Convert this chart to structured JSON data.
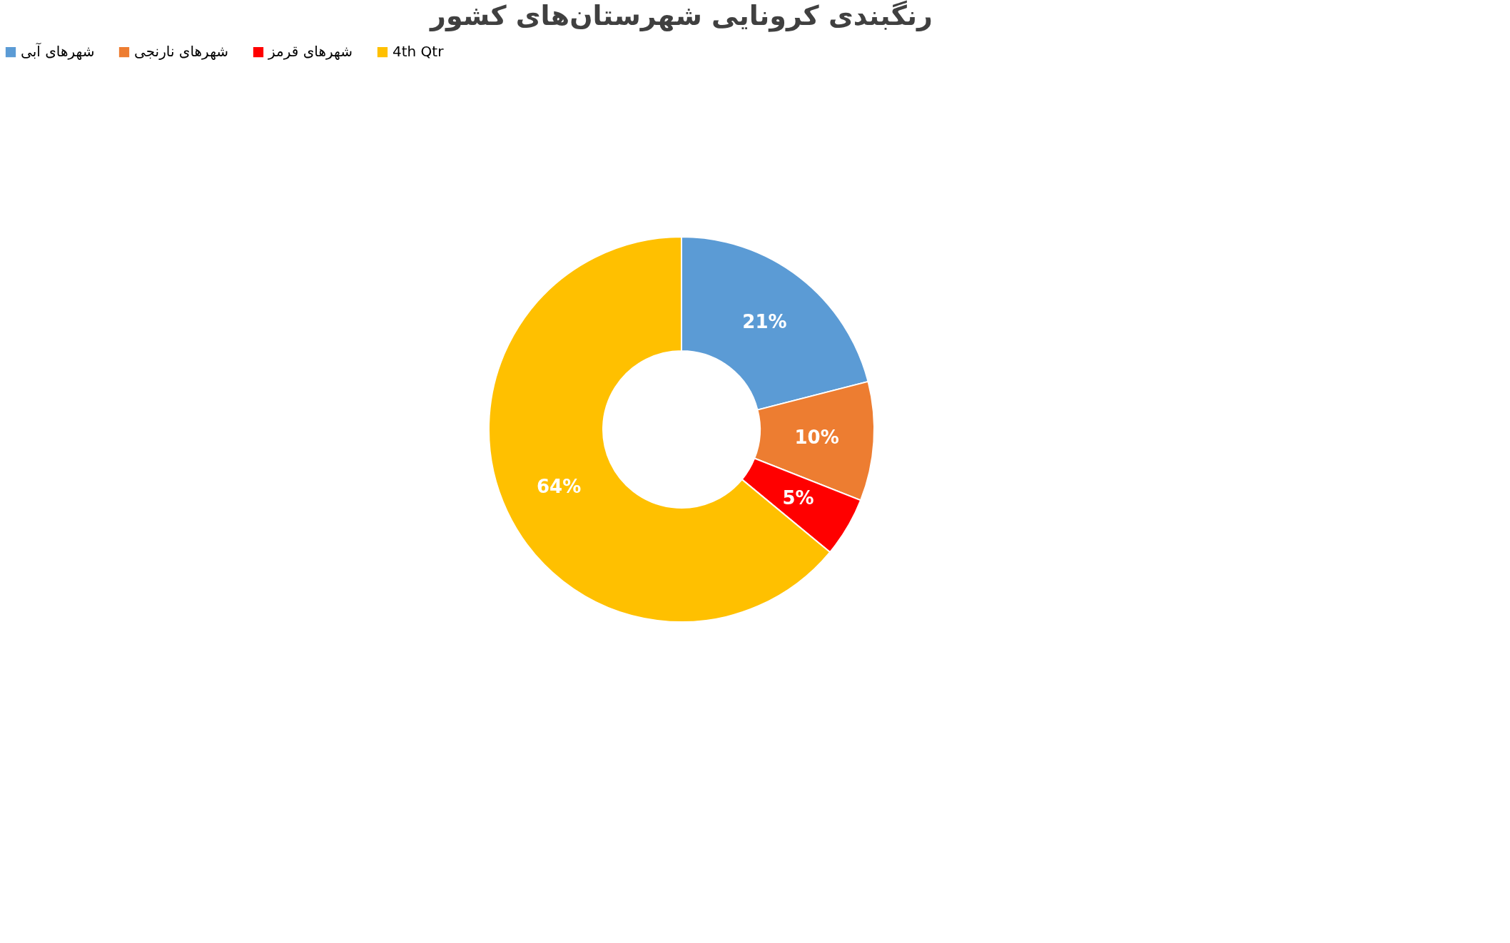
{
  "chart_data": {
    "type": "donut",
    "title": "رنگبندی کرونایی شهرستان‌های کشور",
    "categories": [
      "شهرهای آبی",
      "شهرهای نارنجی",
      "شهرهای قرمز",
      "4th Qtr"
    ],
    "values": [
      21,
      10,
      5,
      64
    ],
    "colors": [
      "#5b9bd5",
      "#ed7d31",
      "#ff0000",
      "#ffc000"
    ],
    "value_labels": [
      "21%",
      "10%",
      "5%",
      "64%"
    ],
    "legend": "top"
  }
}
